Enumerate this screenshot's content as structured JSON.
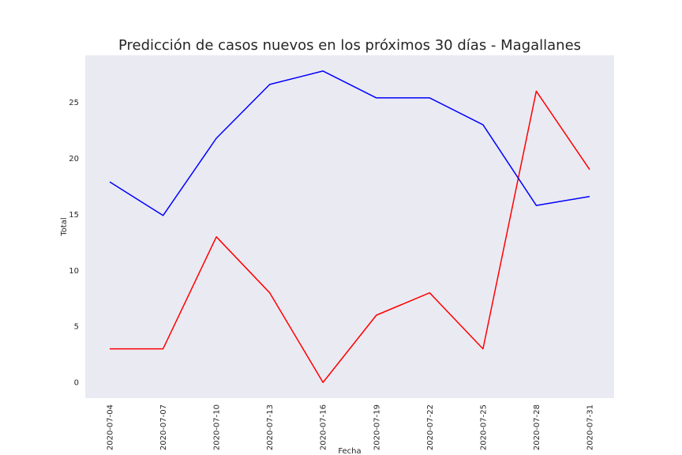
{
  "chart_data": {
    "type": "line",
    "title": "Predicción de casos nuevos en los próximos 30 días - Magallanes",
    "xlabel": "Fecha",
    "ylabel": "Total",
    "x": [
      "2020-07-04",
      "2020-07-07",
      "2020-07-10",
      "2020-07-13",
      "2020-07-16",
      "2020-07-19",
      "2020-07-22",
      "2020-07-25",
      "2020-07-28",
      "2020-07-31"
    ],
    "x_ticks": [
      "2020-07-04",
      "2020-07-07",
      "2020-07-10",
      "2020-07-13",
      "2020-07-16",
      "2020-07-19",
      "2020-07-22",
      "2020-07-25",
      "2020-07-28",
      "2020-07-31"
    ],
    "y_ticks": [
      0,
      5,
      10,
      15,
      20,
      25
    ],
    "ylim": [
      -1.4,
      29.2
    ],
    "grid": false,
    "background_color": "#eaeaf2",
    "series": [
      {
        "color": "#ff0000",
        "values": [
          3,
          3,
          13,
          8,
          0,
          6,
          8,
          3,
          26,
          19
        ]
      },
      {
        "color": "#0000ff",
        "values": [
          17.9,
          14.9,
          21.8,
          26.6,
          27.8,
          25.4,
          25.4,
          23.0,
          15.8,
          16.6
        ]
      }
    ]
  }
}
